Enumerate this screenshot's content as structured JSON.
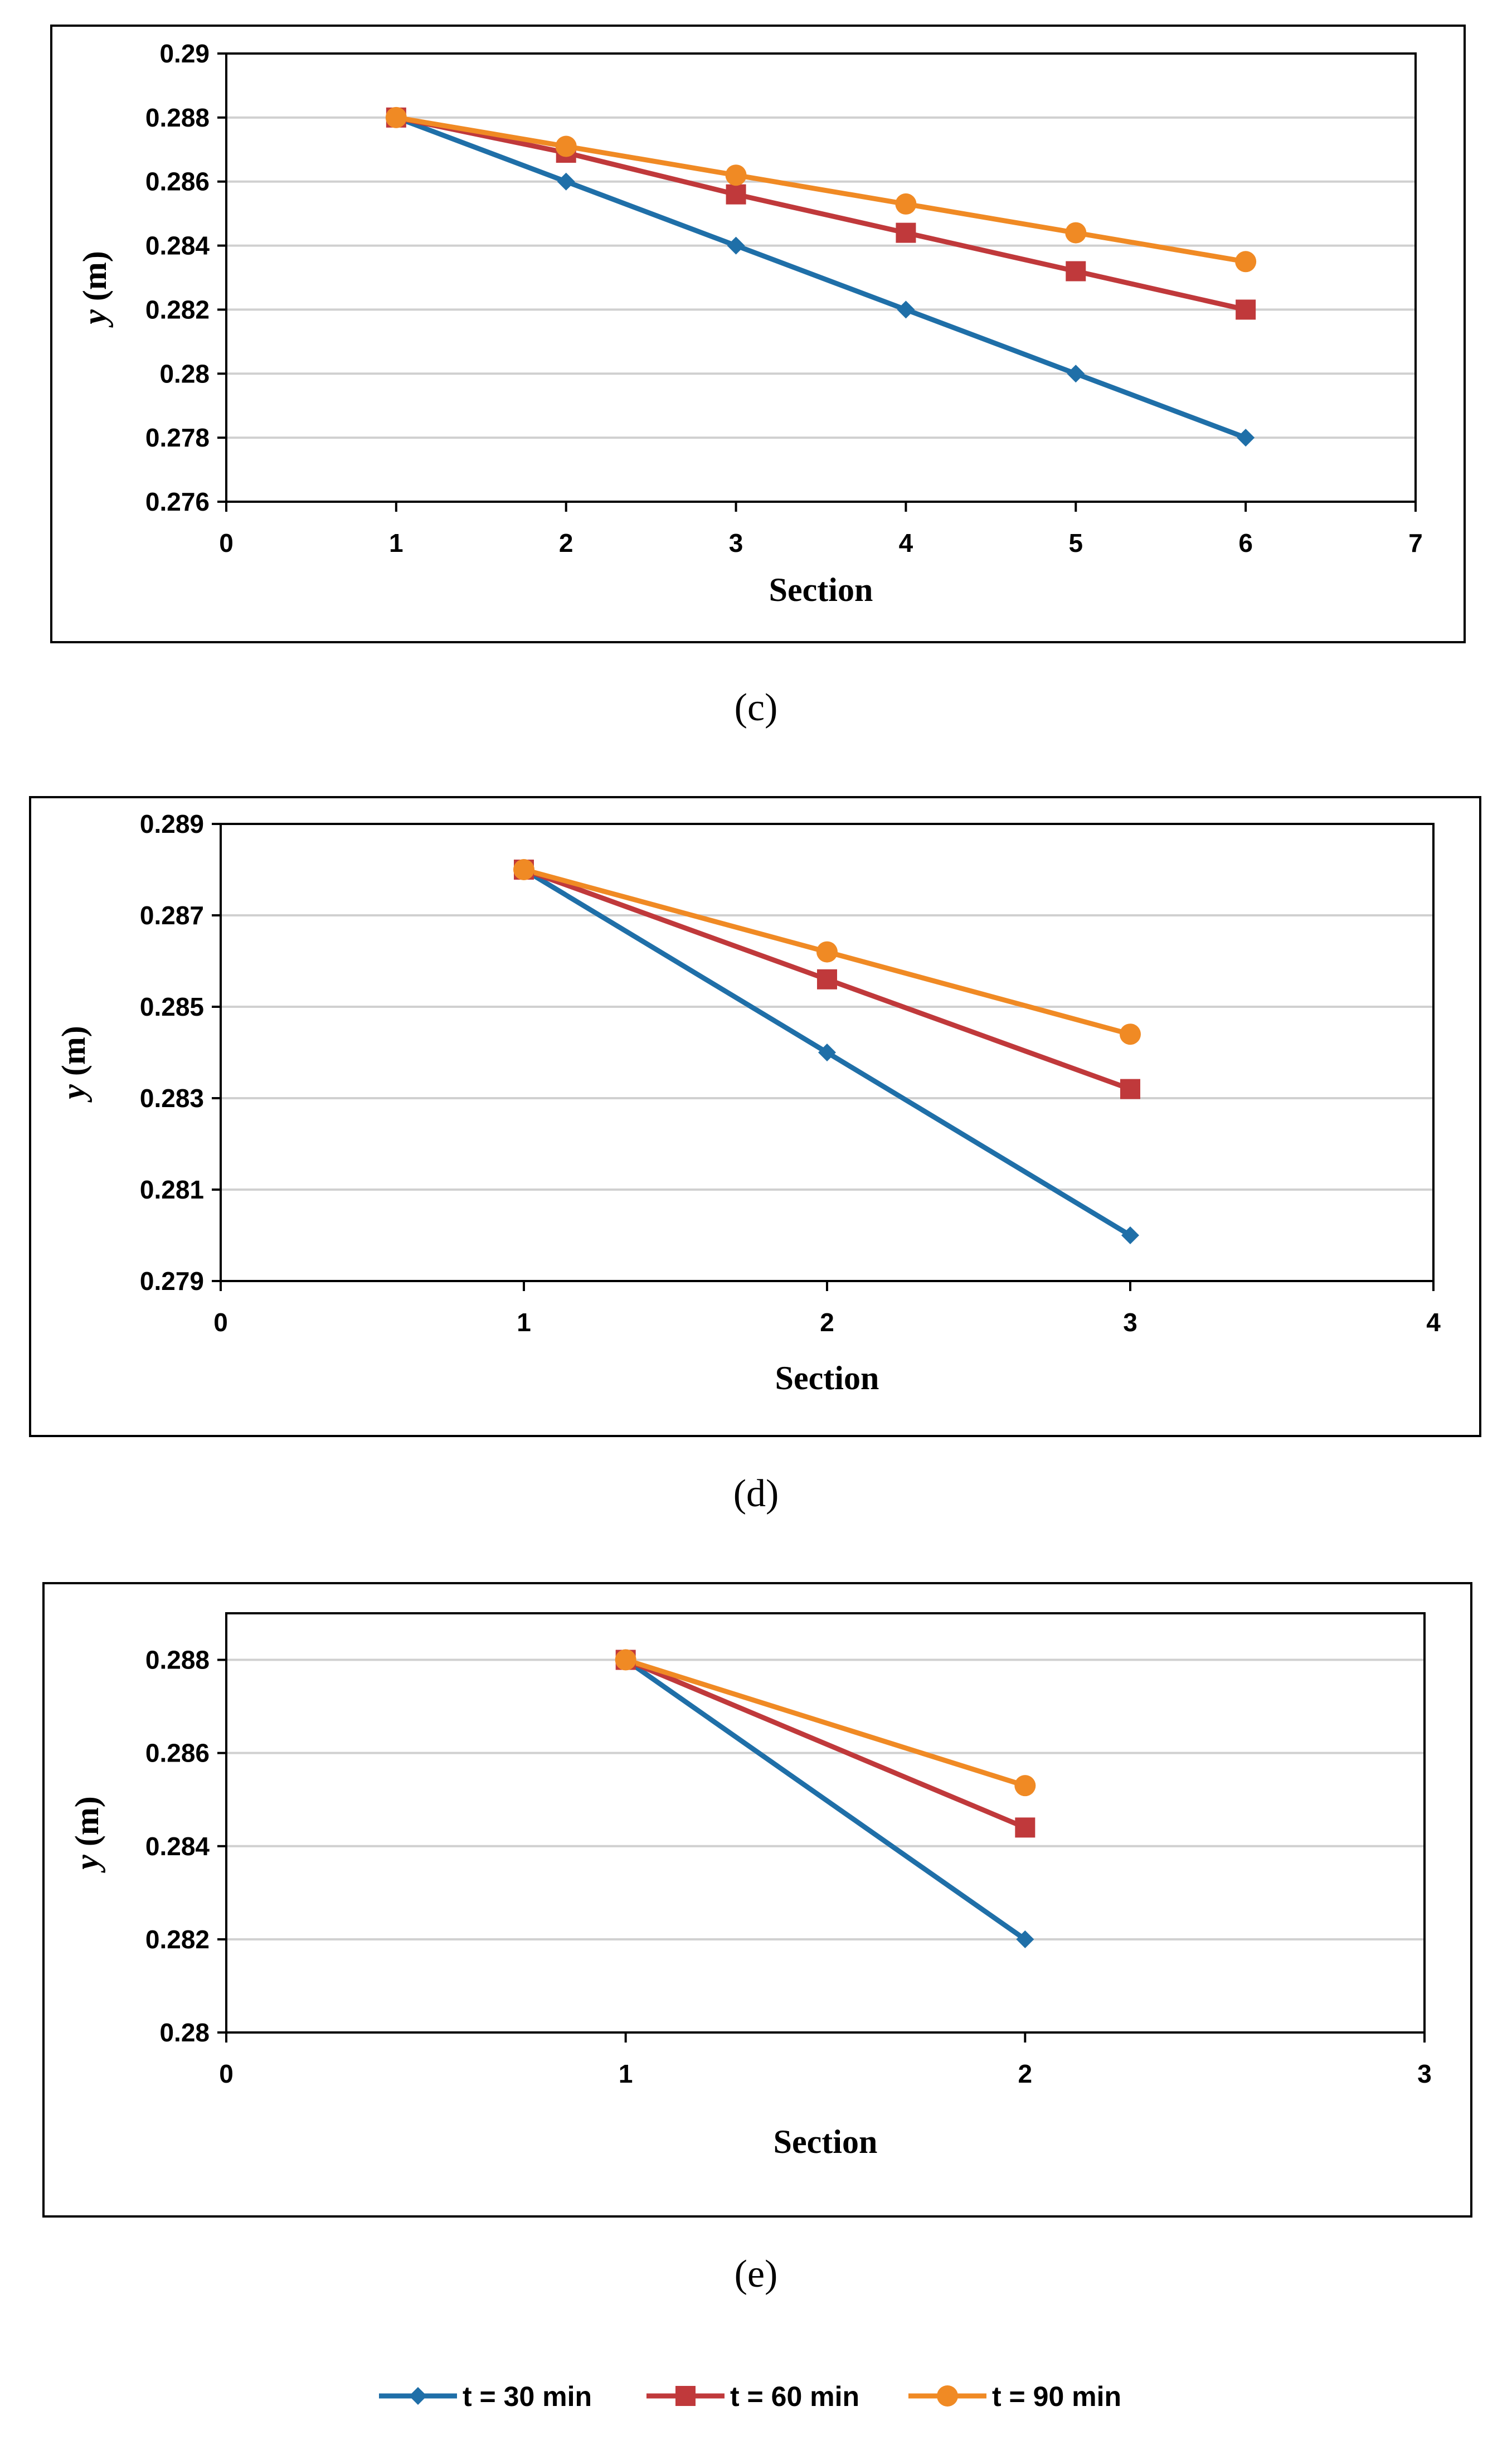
{
  "chart_data": [
    {
      "type": "line",
      "panel": "c",
      "x": [
        1,
        2,
        3,
        4,
        5,
        6
      ],
      "series": [
        {
          "name": "t = 30 min",
          "values": [
            0.288,
            0.286,
            0.284,
            0.282,
            0.28,
            0.278
          ]
        },
        {
          "name": "t = 60 min",
          "values": [
            0.288,
            0.2869,
            0.2856,
            0.2844,
            0.2832,
            0.282
          ]
        },
        {
          "name": "t = 90 min",
          "values": [
            0.288,
            0.2871,
            0.2862,
            0.2853,
            0.2844,
            0.2835
          ]
        }
      ],
      "xlim": [
        0,
        7
      ],
      "ylim": [
        0.276,
        0.29
      ],
      "xticks": [
        "0",
        "1",
        "2",
        "3",
        "4",
        "5",
        "6",
        "7"
      ],
      "yticks": [
        "0.276",
        "0.278",
        "0.28",
        "0.282",
        "0.284",
        "0.286",
        "0.288",
        "0.29"
      ],
      "xlabel": "Section",
      "ylabel_var": "y",
      "ylabel_unit": "(m)",
      "caption": "c"
    },
    {
      "type": "line",
      "panel": "d",
      "x": [
        1,
        2,
        3
      ],
      "series": [
        {
          "name": "t = 30 min",
          "values": [
            0.288,
            0.284,
            0.28
          ]
        },
        {
          "name": "t = 60 min",
          "values": [
            0.288,
            0.2856,
            0.2832
          ]
        },
        {
          "name": "t = 90 min",
          "values": [
            0.288,
            0.2862,
            0.2844
          ]
        }
      ],
      "xlim": [
        0,
        4
      ],
      "ylim": [
        0.279,
        0.289
      ],
      "xticks": [
        "0",
        "1",
        "2",
        "3",
        "4"
      ],
      "yticks": [
        "0.279",
        "0.281",
        "0.283",
        "0.285",
        "0.287",
        "0.289"
      ],
      "xlabel": "Section",
      "ylabel_var": "y",
      "ylabel_unit": "(m)",
      "caption": "d"
    },
    {
      "type": "line",
      "panel": "e",
      "x": [
        1,
        2
      ],
      "series": [
        {
          "name": "t = 30 min",
          "values": [
            0.288,
            0.282
          ]
        },
        {
          "name": "t = 60 min",
          "values": [
            0.288,
            0.2844
          ]
        },
        {
          "name": "t = 90 min",
          "values": [
            0.288,
            0.2853
          ]
        }
      ],
      "xlim": [
        0,
        3
      ],
      "ylim": [
        0.28,
        0.289
      ],
      "xticks": [
        "0",
        "1",
        "2",
        "3"
      ],
      "yticks": [
        "0.28",
        "0.282",
        "0.284",
        "0.286",
        "0.288"
      ],
      "xlabel": "Section",
      "ylabel_var": "y",
      "ylabel_unit": "(m)",
      "caption": "e"
    }
  ],
  "legend": [
    {
      "label": "t = 30 min",
      "color": "#1f6fa8",
      "marker": "diamond"
    },
    {
      "label": "t = 60 min",
      "color": "#c0393b",
      "marker": "square"
    },
    {
      "label": "t = 90 min",
      "color": "#f08a24",
      "marker": "circle"
    }
  ],
  "captions": {
    "c": "(c)",
    "d": "(d)",
    "e": "(e)"
  }
}
